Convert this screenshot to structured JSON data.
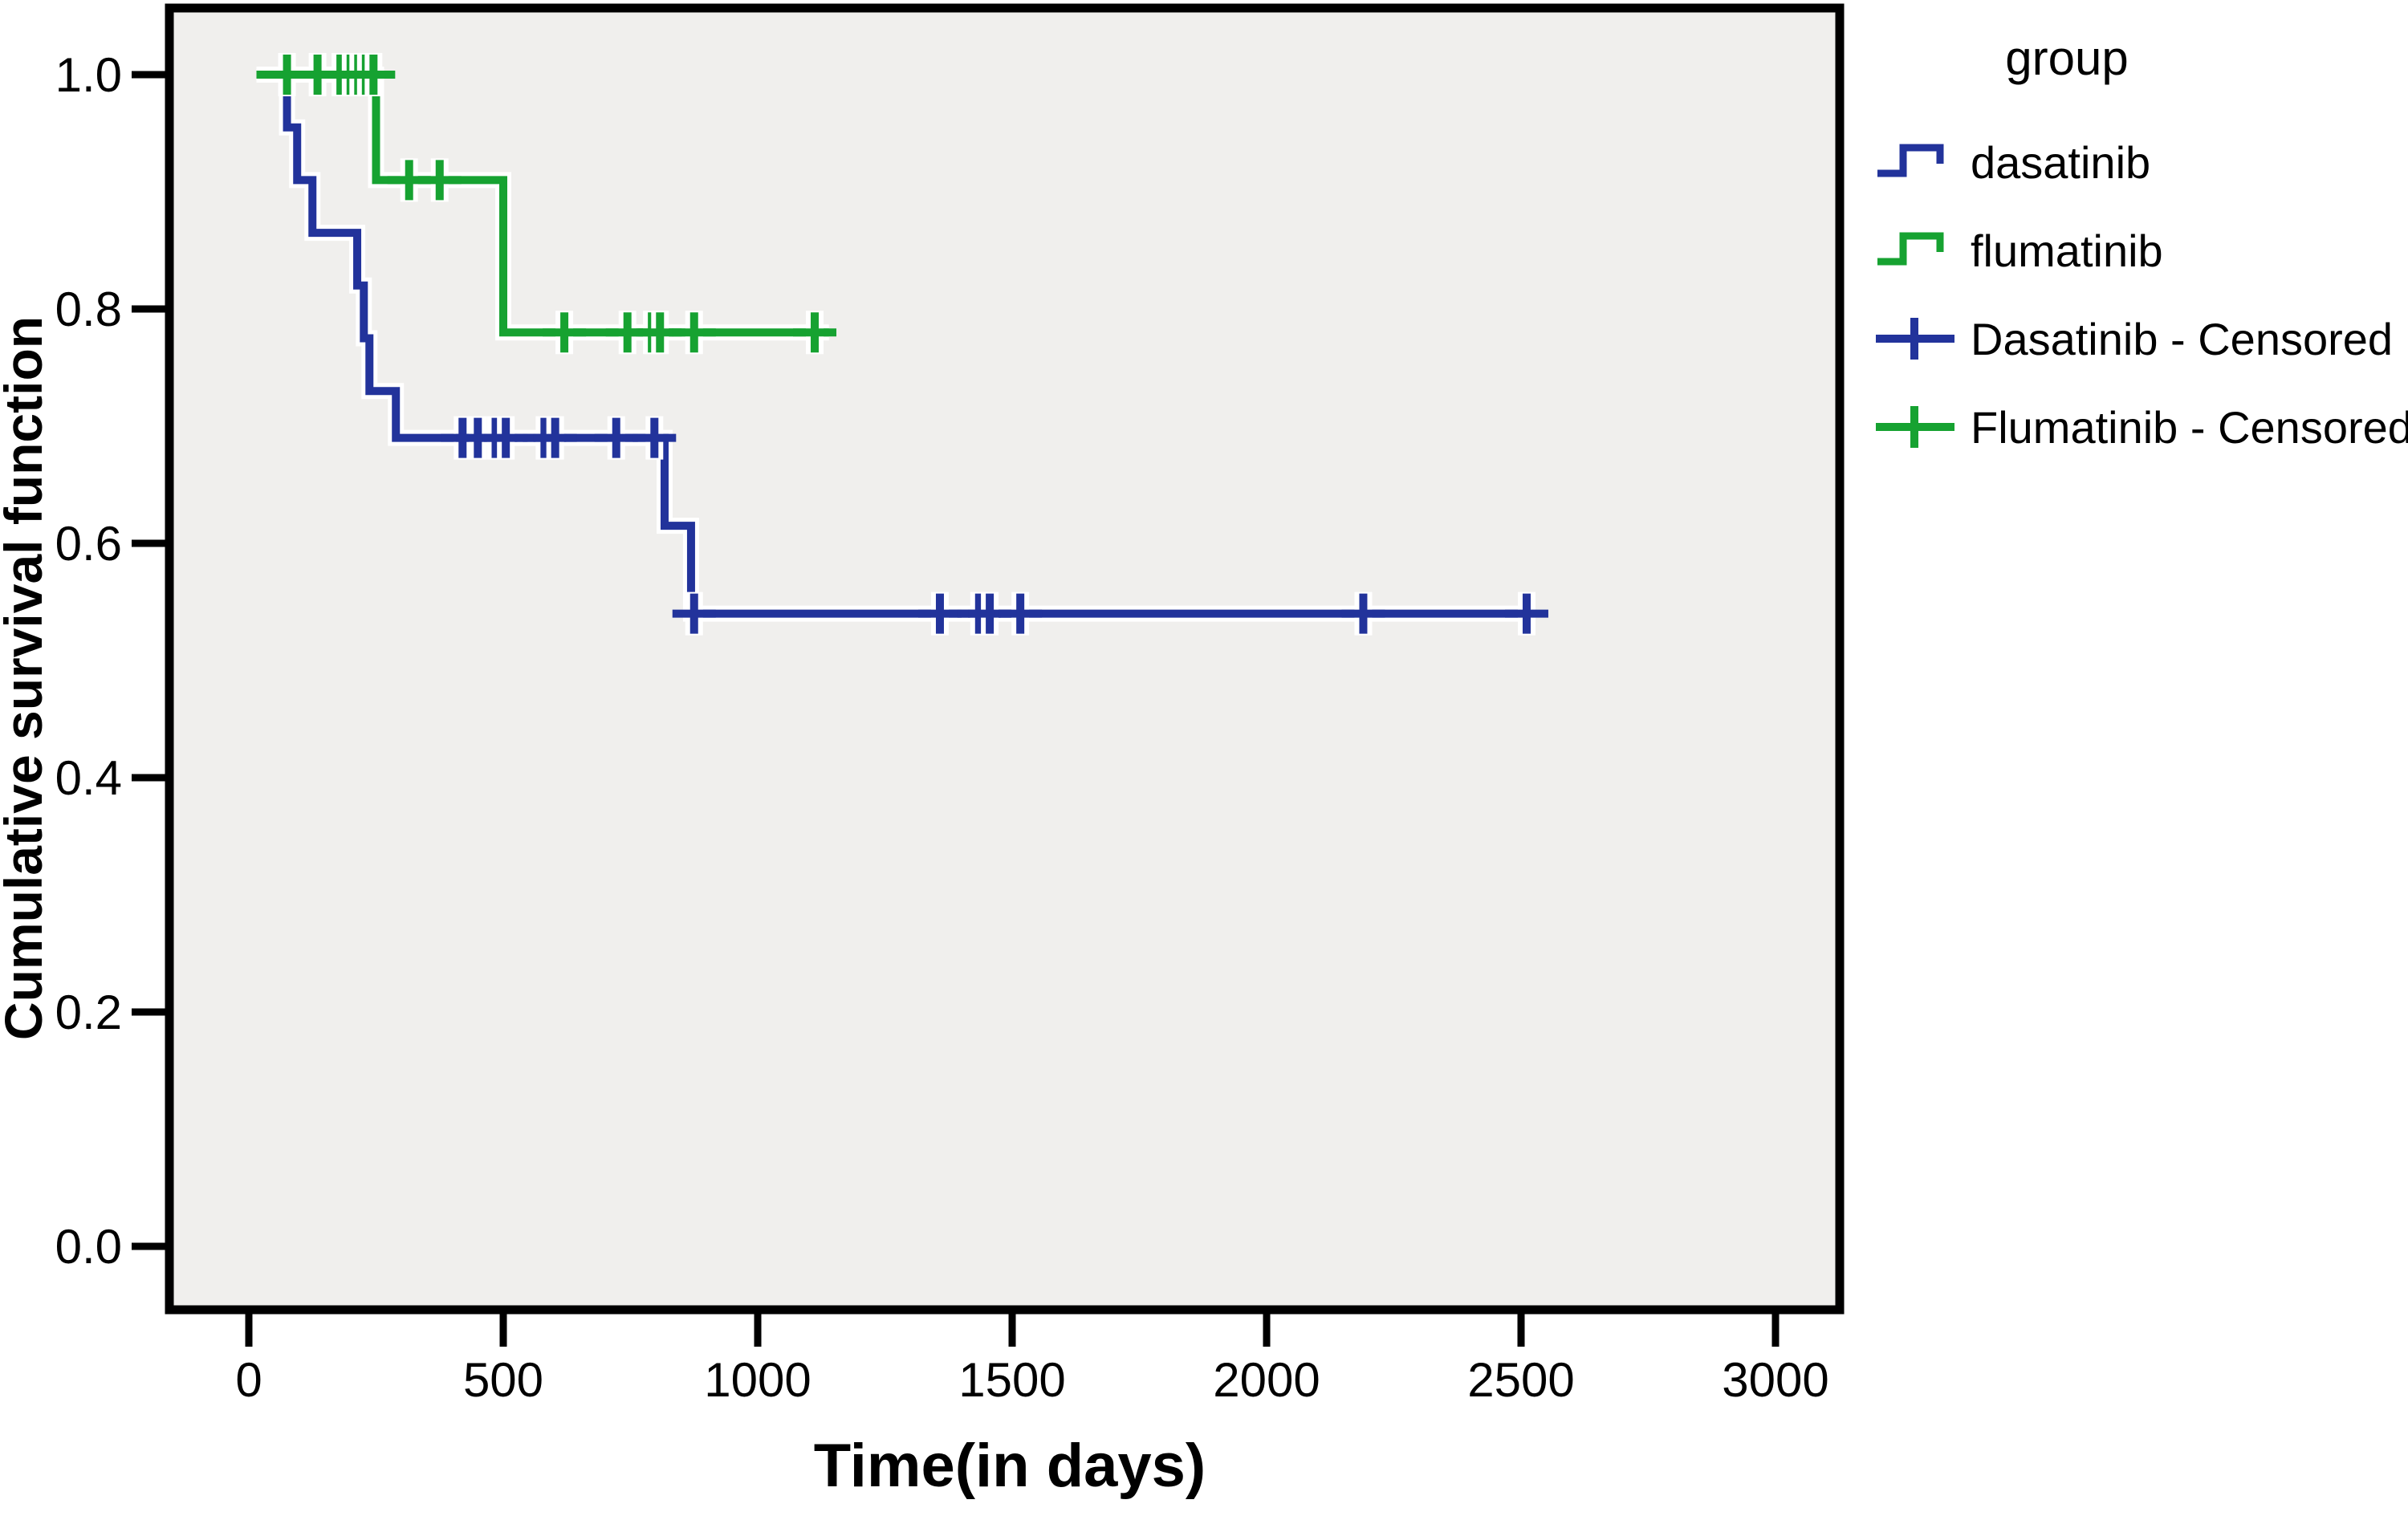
{
  "chart_data": {
    "type": "line",
    "variant": "kaplan_meier_step_survival",
    "title": "",
    "xlabel": "Time(in days)",
    "ylabel": "Cumulative survival function",
    "xlim": [
      0,
      3000
    ],
    "ylim": [
      0.0,
      1.0
    ],
    "grid": false,
    "plot_bg_color": "#f0efed",
    "frame_color": "#000000",
    "x_ticks": {
      "values": [
        0,
        500,
        1000,
        1500,
        2000,
        2500,
        3000
      ],
      "labels": [
        "0",
        "500",
        "1000",
        "1500",
        "2000",
        "2500",
        "3000"
      ]
    },
    "y_ticks": {
      "values": [
        0.0,
        0.2,
        0.4,
        0.6,
        0.8,
        1.0
      ],
      "labels": [
        "0.0",
        "0.2",
        "0.4",
        "0.6",
        "0.8",
        "1.0"
      ]
    },
    "legend_position": "top-right-outside",
    "legend_title": "group",
    "series": [
      {
        "name": "dasatinib",
        "color": "#22339b",
        "start_day": 15,
        "end_day": 2515,
        "events": [
          [
            75,
            0.955
          ],
          [
            95,
            0.91
          ],
          [
            125,
            0.865
          ],
          [
            213,
            0.82
          ],
          [
            226,
            0.775
          ],
          [
            237,
            0.73
          ],
          [
            289,
            0.69
          ],
          [
            817,
            0.615
          ],
          [
            869,
            0.54
          ]
        ],
        "censored": [
          [
            420,
            0.69
          ],
          [
            450,
            0.69
          ],
          [
            485,
            0.69
          ],
          [
            505,
            0.69
          ],
          [
            581,
            0.69
          ],
          [
            602,
            0.69
          ],
          [
            722,
            0.69
          ],
          [
            797,
            0.69
          ],
          [
            875,
            0.54
          ],
          [
            1358,
            0.54
          ],
          [
            1435,
            0.54
          ],
          [
            1456,
            0.54
          ],
          [
            1516,
            0.54
          ],
          [
            2190,
            0.54
          ],
          [
            2511,
            0.54
          ]
        ]
      },
      {
        "name": "flumatinib",
        "color": "#16a231",
        "start_day": 15,
        "end_day": 1140,
        "events": [
          [
            250,
            0.91
          ],
          [
            500,
            0.78
          ]
        ],
        "censored": [
          [
            75,
            1.0
          ],
          [
            135,
            1.0
          ],
          [
            180,
            1.0
          ],
          [
            200,
            1.0
          ],
          [
            215,
            1.0
          ],
          [
            230,
            1.0
          ],
          [
            245,
            1.0
          ],
          [
            315,
            0.91
          ],
          [
            375,
            0.91
          ],
          [
            620,
            0.78
          ],
          [
            744,
            0.78
          ],
          [
            792,
            0.78
          ],
          [
            808,
            0.78
          ],
          [
            875,
            0.78
          ],
          [
            1112,
            0.78
          ]
        ]
      }
    ],
    "legend": [
      {
        "label": "dasatinib",
        "symbol": "step-line",
        "series": 0
      },
      {
        "label": "flumatinib",
        "symbol": "step-line",
        "series": 1
      },
      {
        "label": "Dasatinib - Censored",
        "symbol": "plus",
        "series": 0
      },
      {
        "label": "Flumatinib - Censored",
        "symbol": "plus",
        "series": 1
      }
    ]
  }
}
